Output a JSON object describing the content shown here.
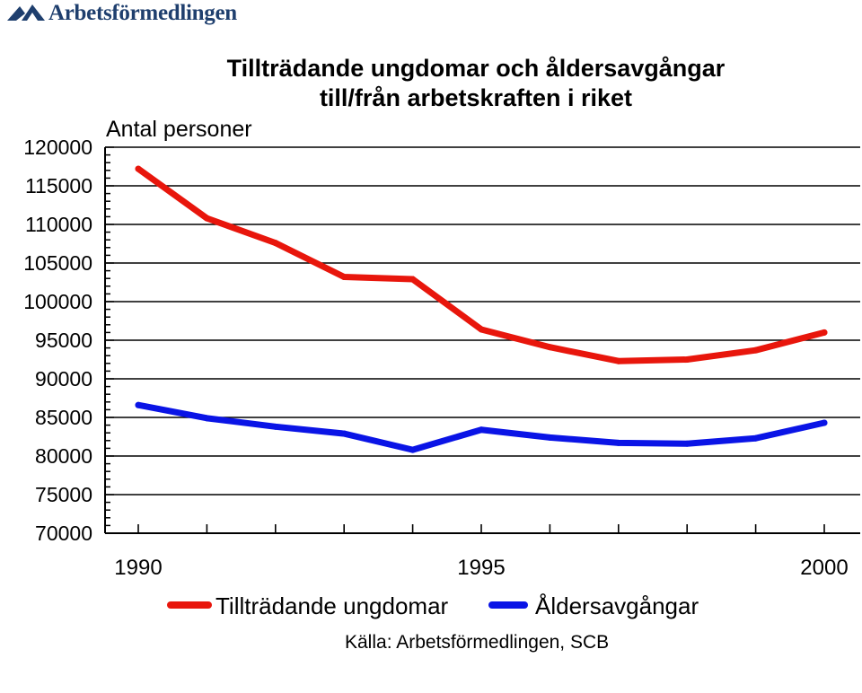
{
  "logo": {
    "text": "Arbetsförmedlingen"
  },
  "chart_data": {
    "type": "line",
    "title_line1": "Tillträdande ungdomar och åldersavgångar",
    "title_line2": "till/från arbetskraften i riket",
    "ylabel": "Antal personer",
    "xlabel": "",
    "x": [
      1990,
      1991,
      1992,
      1993,
      1994,
      1995,
      1996,
      1997,
      1998,
      1999,
      2000
    ],
    "x_tick_labels": [
      "1990",
      "1995",
      "2000"
    ],
    "y_tick_labels": [
      "120000",
      "115000",
      "110000",
      "105000",
      "100000",
      "95000",
      "90000",
      "85000",
      "80000",
      "75000",
      "70000"
    ],
    "ylim": [
      70000,
      120000
    ],
    "xlim": [
      1989.5,
      2000
    ],
    "grid": "horizontal",
    "legend_position": "bottom",
    "series": [
      {
        "name": "Tillträdande ungdomar",
        "color": "#e8160c",
        "values": [
          117200,
          110800,
          107600,
          103200,
          102900,
          96400,
          94100,
          92300,
          92500,
          93700,
          96000
        ]
      },
      {
        "name": "Åldersavgångar",
        "color": "#0a14e6",
        "values": [
          86600,
          84900,
          83800,
          82900,
          80800,
          83400,
          82400,
          81700,
          81600,
          82300,
          84300
        ]
      }
    ],
    "source": "Källa: Arbetsförmedlingen, SCB"
  }
}
